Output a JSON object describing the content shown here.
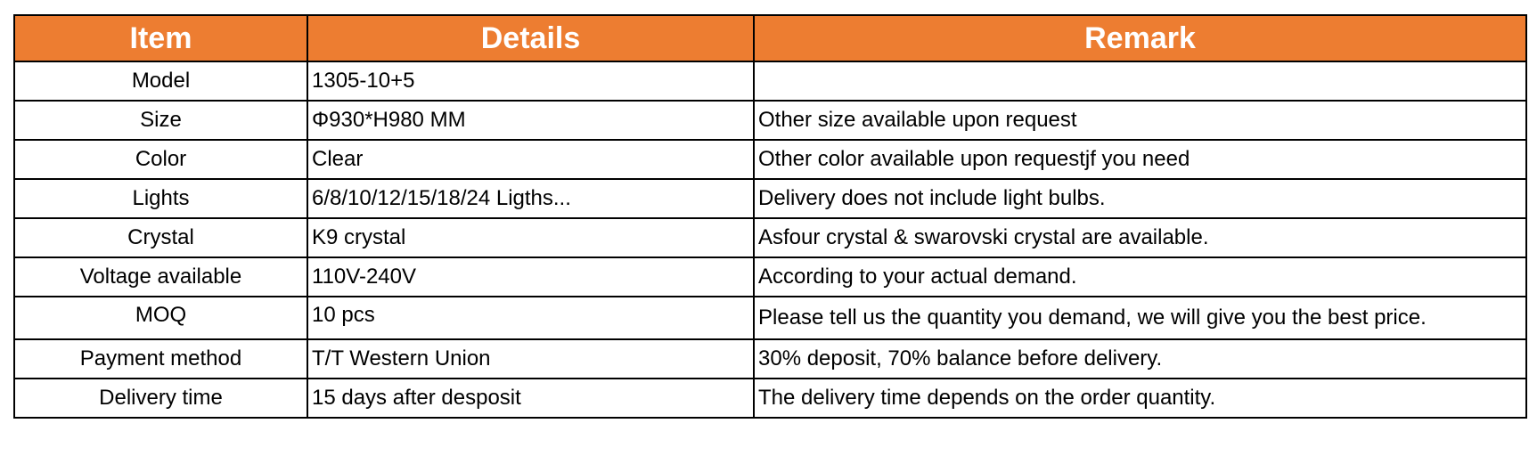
{
  "colors": {
    "header_bg": "#ED7D31",
    "header_text": "#FFFFFF",
    "border": "#000000"
  },
  "headers": [
    "Item",
    "Details",
    "Remark"
  ],
  "rows": [
    {
      "item": "Model",
      "details": "1305-10+5",
      "remark": ""
    },
    {
      "item": "Size",
      "details": "Φ930*H980 MM",
      "remark": "Other size available upon request"
    },
    {
      "item": "Color",
      "details": "Clear",
      "remark": "Other color available upon requestjf you need"
    },
    {
      "item": "Lights",
      "details": "6/8/10/12/15/18/24 Ligths...",
      "remark": "Delivery does not include light bulbs."
    },
    {
      "item": "Crystal",
      "details": "K9 crystal",
      "remark": "Asfour crystal & swarovski crystal are available."
    },
    {
      "item": "Voltage available",
      "details": "110V-240V",
      "remark": "According to your actual demand."
    },
    {
      "item": "MOQ",
      "details": "10 pcs",
      "remark": "Please tell us the quantity you demand, we will give you the best price."
    },
    {
      "item": "Payment method",
      "details": "T/T Western Union",
      "remark": "30% deposit, 70% balance before delivery."
    },
    {
      "item": "Delivery time",
      "details": "15 days after desposit",
      "remark": "The delivery time depends on the order quantity."
    }
  ]
}
